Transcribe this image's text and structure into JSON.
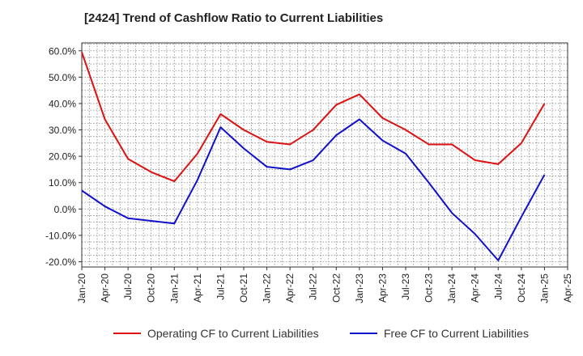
{
  "chart_data": {
    "type": "line",
    "title": "[2424]  Trend of Cashflow Ratio to Current Liabilities",
    "xlabel": "",
    "ylabel": "",
    "ylim": [
      -22,
      63
    ],
    "yticks": [
      60,
      50,
      40,
      30,
      20,
      10,
      0,
      -10,
      -20
    ],
    "ytick_labels": [
      "60.0%",
      "50.0%",
      "40.0%",
      "30.0%",
      "20.0%",
      "10.0%",
      "0.0%",
      "-10.0%",
      "-20.0%"
    ],
    "x_tick_labels": [
      "Jan-20",
      "Apr-20",
      "Jul-20",
      "Oct-20",
      "Jan-21",
      "Apr-21",
      "Jul-21",
      "Oct-21",
      "Jan-22",
      "Apr-22",
      "Jul-22",
      "Oct-22",
      "Jan-23",
      "Apr-23",
      "Jul-23",
      "Oct-23",
      "Jan-24",
      "Apr-24",
      "Jul-24",
      "Oct-24",
      "Jan-25",
      "Apr-25"
    ],
    "x_index_range": [
      0,
      21
    ],
    "grid": true,
    "legend_position": "bottom",
    "series": [
      {
        "name": "Operating CF to Current Liabilities",
        "color": "#dd1111",
        "x": [
          "Jan-20",
          "Apr-20",
          "Jul-20",
          "Oct-20",
          "Jan-21",
          "Apr-21",
          "Jul-21",
          "Oct-21",
          "Jan-22",
          "Apr-22",
          "Jul-22",
          "Oct-22",
          "Jan-23",
          "Apr-23",
          "Jul-23",
          "Oct-23",
          "Jan-24",
          "Apr-24",
          "Jul-24",
          "Oct-24",
          "Jan-25"
        ],
        "values": [
          59.5,
          34,
          19,
          14,
          10.5,
          21,
          36,
          30,
          25.5,
          24.5,
          30,
          39.5,
          43.5,
          34.5,
          30,
          24.5,
          24.5,
          18.5,
          17,
          25,
          40
        ]
      },
      {
        "name": "Free CF to Current Liabilities",
        "color": "#1111cc",
        "x": [
          "Jan-20",
          "Apr-20",
          "Jul-20",
          "Oct-20",
          "Jan-21",
          "Apr-21",
          "Jul-21",
          "Oct-21",
          "Jan-22",
          "Apr-22",
          "Jul-22",
          "Oct-22",
          "Jan-23",
          "Apr-23",
          "Jul-23",
          "Oct-23",
          "Jan-24",
          "Apr-24",
          "Jul-24",
          "Oct-24",
          "Jan-25"
        ],
        "values": [
          7,
          1,
          -3.5,
          -4.5,
          -5.5,
          11,
          31,
          23,
          16,
          15,
          18.5,
          28,
          34,
          26,
          21,
          10,
          -1.5,
          -9.5,
          -19.5,
          -3,
          13
        ]
      }
    ]
  }
}
